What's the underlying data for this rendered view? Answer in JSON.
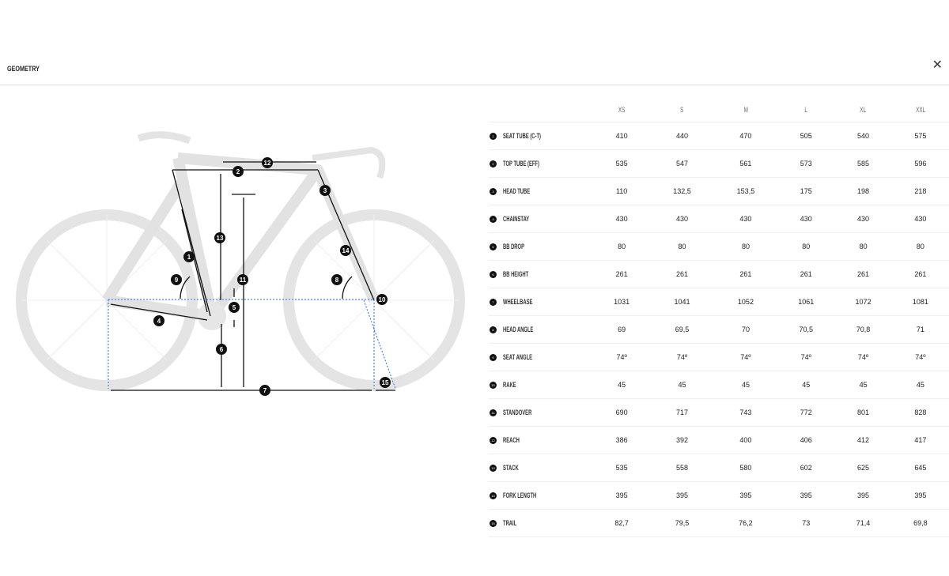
{
  "header": {
    "title": "GEOMETRY",
    "close_icon": "close-icon"
  },
  "diagram": {
    "labels": [
      "1",
      "2",
      "3",
      "4",
      "5",
      "6",
      "7",
      "8",
      "9",
      "10",
      "11",
      "12",
      "13",
      "14",
      "15"
    ]
  },
  "table": {
    "sizes": [
      "XS",
      "S",
      "M",
      "L",
      "XL",
      "XXL"
    ],
    "rows": [
      {
        "num": "1",
        "label": "SEAT TUBE (C-T)",
        "values": [
          "410",
          "440",
          "470",
          "505",
          "540",
          "575"
        ]
      },
      {
        "num": "2",
        "label": "TOP TUBE (EFF)",
        "values": [
          "535",
          "547",
          "561",
          "573",
          "585",
          "596"
        ]
      },
      {
        "num": "3",
        "label": "HEAD TUBE",
        "values": [
          "110",
          "132,5",
          "153,5",
          "175",
          "198",
          "218"
        ]
      },
      {
        "num": "4",
        "label": "CHAINSTAY",
        "values": [
          "430",
          "430",
          "430",
          "430",
          "430",
          "430"
        ]
      },
      {
        "num": "5",
        "label": "BB DROP",
        "values": [
          "80",
          "80",
          "80",
          "80",
          "80",
          "80"
        ]
      },
      {
        "num": "6",
        "label": "BB HEIGHT",
        "values": [
          "261",
          "261",
          "261",
          "261",
          "261",
          "261"
        ]
      },
      {
        "num": "7",
        "label": "WHEELBASE",
        "values": [
          "1031",
          "1041",
          "1052",
          "1061",
          "1072",
          "1081"
        ]
      },
      {
        "num": "8",
        "label": "HEAD ANGLE",
        "values": [
          "69",
          "69,5",
          "70",
          "70,5",
          "70,8",
          "71"
        ]
      },
      {
        "num": "9",
        "label": "SEAT ANGLE",
        "values": [
          "74º",
          "74º",
          "74º",
          "74º",
          "74º",
          "74º"
        ]
      },
      {
        "num": "10",
        "label": "RAKE",
        "values": [
          "45",
          "45",
          "45",
          "45",
          "45",
          "45"
        ]
      },
      {
        "num": "11",
        "label": "STANDOVER",
        "values": [
          "690",
          "717",
          "743",
          "772",
          "801",
          "828"
        ]
      },
      {
        "num": "12",
        "label": "REACH",
        "values": [
          "386",
          "392",
          "400",
          "406",
          "412",
          "417"
        ]
      },
      {
        "num": "13",
        "label": "STACK",
        "values": [
          "535",
          "558",
          "580",
          "602",
          "625",
          "645"
        ]
      },
      {
        "num": "14",
        "label": "FORK LENGTH",
        "values": [
          "395",
          "395",
          "395",
          "395",
          "395",
          "395"
        ]
      },
      {
        "num": "15",
        "label": "TRAIL",
        "values": [
          "82,7",
          "79,5",
          "76,2",
          "73",
          "71,4",
          "69,8"
        ]
      }
    ]
  }
}
